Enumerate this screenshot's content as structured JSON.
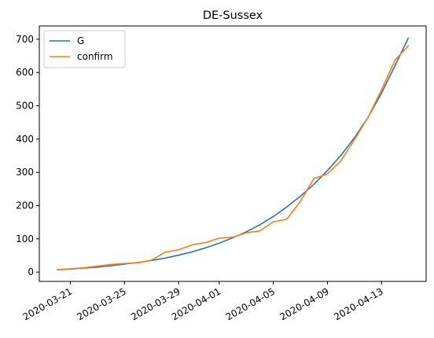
{
  "chart_data": {
    "type": "line",
    "title": "DE-Sussex",
    "x": [
      "2020-03-20",
      "2020-03-21",
      "2020-03-22",
      "2020-03-23",
      "2020-03-24",
      "2020-03-25",
      "2020-03-26",
      "2020-03-27",
      "2020-03-28",
      "2020-03-29",
      "2020-03-30",
      "2020-03-31",
      "2020-04-01",
      "2020-04-02",
      "2020-04-03",
      "2020-04-04",
      "2020-04-05",
      "2020-04-06",
      "2020-04-07",
      "2020-04-08",
      "2020-04-09",
      "2020-04-10",
      "2020-04-11",
      "2020-04-12",
      "2020-04-13",
      "2020-04-14",
      "2020-04-15"
    ],
    "series": [
      {
        "name": "G",
        "color": "#1f77b4",
        "values": [
          7,
          9,
          12,
          15,
          19,
          24,
          29,
          35,
          42,
          51,
          61,
          73,
          87,
          103,
          121,
          142,
          167,
          196,
          228,
          264,
          305,
          351,
          404,
          465,
          538,
          621,
          705
        ]
      },
      {
        "name": "confirm",
        "color": "#ff7f0e",
        "values": [
          7,
          10,
          13,
          18,
          23,
          26,
          28,
          36,
          60,
          67,
          82,
          89,
          102,
          105,
          118,
          124,
          151,
          159,
          213,
          281,
          295,
          335,
          398,
          465,
          548,
          637,
          681
        ]
      }
    ],
    "xticks": [
      "2020-03-21",
      "2020-03-25",
      "2020-03-29",
      "2020-04-01",
      "2020-04-05",
      "2020-04-09",
      "2020-04-13"
    ],
    "yticks": [
      0,
      100,
      200,
      300,
      400,
      500,
      600,
      700
    ],
    "ylim": [
      -28,
      740
    ],
    "legend_position": "upper-left",
    "grid": false
  }
}
